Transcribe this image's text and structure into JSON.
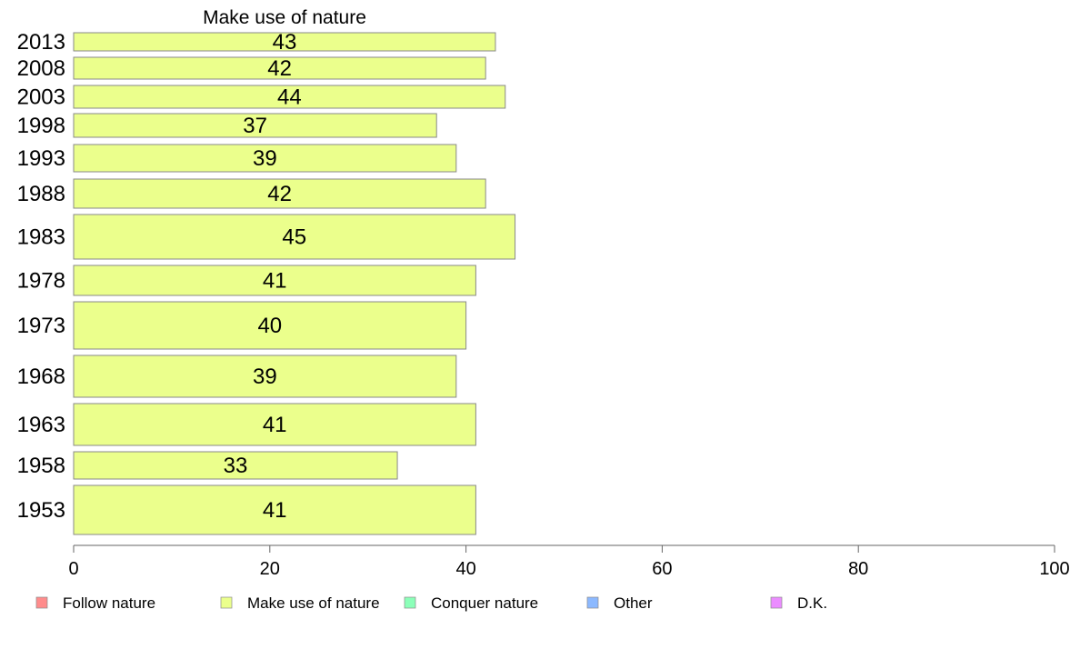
{
  "chart_data": {
    "type": "bar",
    "orientation": "horizontal",
    "title": "Make use of nature",
    "xlabel": "",
    "ylabel": "",
    "xlim": [
      0,
      100
    ],
    "x_ticks": [
      0,
      20,
      40,
      60,
      80,
      100
    ],
    "categories": [
      "2013",
      "2008",
      "2003",
      "1998",
      "1993",
      "1988",
      "1983",
      "1978",
      "1973",
      "1968",
      "1963",
      "1958",
      "1953"
    ],
    "series": [
      {
        "name": "Make use of nature",
        "color": "#ebff8c",
        "values": [
          43,
          42,
          44,
          37,
          39,
          42,
          45,
          41,
          40,
          39,
          41,
          33,
          41
        ]
      }
    ],
    "grid": false,
    "legend": {
      "placement": "bottom",
      "entries": [
        {
          "label": "Follow nature",
          "color": "#ff8c8c"
        },
        {
          "label": "Make use of nature",
          "color": "#ebff8c"
        },
        {
          "label": "Conquer nature",
          "color": "#8cffb9"
        },
        {
          "label": "Other",
          "color": "#8cb9ff"
        },
        {
          "label": "D.K.",
          "color": "#eb8cff"
        }
      ]
    }
  }
}
